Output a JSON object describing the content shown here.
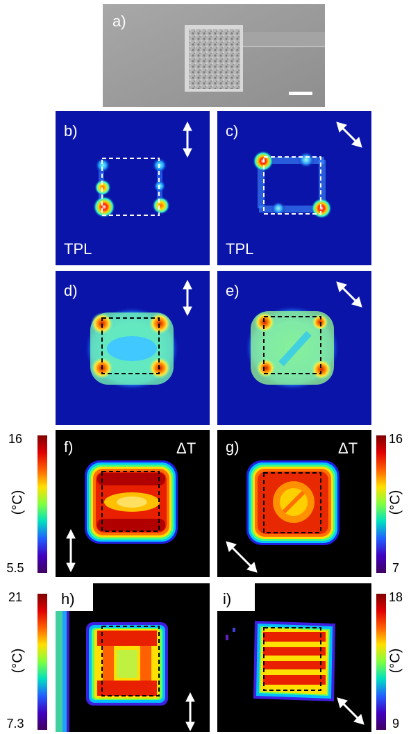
{
  "panels": {
    "a": {
      "label": "a)"
    },
    "b": {
      "label": "b)",
      "caption": "TPL"
    },
    "c": {
      "label": "c)",
      "caption": "TPL"
    },
    "d": {
      "label": "d)"
    },
    "e": {
      "label": "e)"
    },
    "f": {
      "label": "f)",
      "caption": "ΔT"
    },
    "g": {
      "label": "g)",
      "caption": "ΔT"
    },
    "h": {
      "label": "h)"
    },
    "i": {
      "label": "i)"
    }
  },
  "colorbars": {
    "f": {
      "max": "16",
      "min": "5.5",
      "unit": "(°C)"
    },
    "g": {
      "max": "16",
      "min": "7",
      "unit": "(°C)"
    },
    "h": {
      "max": "21",
      "min": "7.3",
      "unit": "(°C)"
    },
    "i": {
      "max": "18",
      "min": "9",
      "unit": "(°C)"
    }
  },
  "colors": {
    "blue_bg": "#0a14a8",
    "black_bg": "#000000",
    "sem_bg": "#9a9a9a"
  }
}
